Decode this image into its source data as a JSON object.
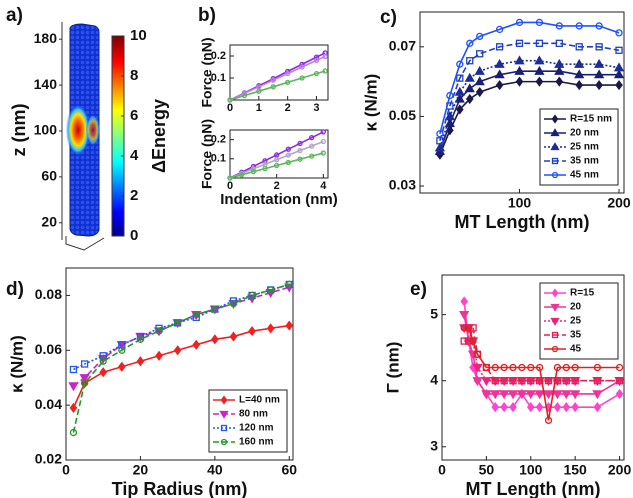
{
  "chart_data": [
    {
      "type": "image",
      "label": "a)",
      "ylabel": "z (nm)",
      "ylim": [
        5,
        195
      ],
      "yticks": [
        20,
        60,
        100,
        140,
        180
      ],
      "colorbar_label": "ΔEnergy",
      "clim": [
        0,
        10
      ],
      "cticks": [
        0,
        2,
        4,
        6,
        8,
        10
      ]
    },
    {
      "type": "line",
      "label": "b)",
      "ylabel": "Force (nN)",
      "xlim": [
        0,
        3.4
      ],
      "ylim": [
        0,
        0.25
      ],
      "xticks": [
        0,
        1,
        2,
        3
      ],
      "yticks": [
        0.1,
        0.2
      ],
      "x": [
        0,
        0.5,
        1,
        1.5,
        2,
        2.5,
        3,
        3.3
      ],
      "series": [
        {
          "color": "#8a2be2",
          "marker": "circle",
          "values": [
            0,
            0.032,
            0.065,
            0.097,
            0.13,
            0.162,
            0.195,
            0.214
          ]
        },
        {
          "color": "#c080e0",
          "marker": "circle",
          "values": [
            0,
            0.03,
            0.06,
            0.09,
            0.12,
            0.15,
            0.18,
            0.198
          ]
        },
        {
          "color": "#5cb85c",
          "marker": "circle",
          "values": [
            0,
            0.02,
            0.04,
            0.06,
            0.08,
            0.1,
            0.12,
            0.132
          ]
        }
      ]
    },
    {
      "type": "line",
      "ylabel": "Force (nN)",
      "xlabel": "Indentation (nm)",
      "xlim": [
        0,
        4.2
      ],
      "ylim": [
        0,
        0.25
      ],
      "xticks": [
        0,
        2,
        4
      ],
      "yticks": [
        0.1,
        0.2
      ],
      "x": [
        0,
        0.5,
        1,
        1.5,
        2,
        2.5,
        3,
        3.5,
        4
      ],
      "series": [
        {
          "color": "#8a2be2",
          "marker": "circle",
          "values": [
            0,
            0.03,
            0.06,
            0.09,
            0.12,
            0.15,
            0.18,
            0.21,
            0.24
          ]
        },
        {
          "color": "#b0a8c0",
          "marker": "circle",
          "values": [
            0,
            0.024,
            0.048,
            0.071,
            0.095,
            0.119,
            0.143,
            0.166,
            0.19
          ]
        },
        {
          "color": "#5cb85c",
          "marker": "circle",
          "values": [
            0,
            0.016,
            0.033,
            0.049,
            0.065,
            0.081,
            0.098,
            0.114,
            0.13
          ]
        }
      ]
    },
    {
      "type": "line",
      "label": "c)",
      "xlabel": "MT Length (nm)",
      "ylabel": "κ (N/m)",
      "xlim": [
        0,
        205
      ],
      "ylim": [
        0.028,
        0.08
      ],
      "xticks": [
        100,
        200
      ],
      "yticks": [
        0.03,
        0.05,
        0.07
      ],
      "legend": "lower right",
      "x": [
        20,
        30,
        40,
        50,
        60,
        80,
        100,
        120,
        140,
        160,
        180,
        200
      ],
      "series": [
        {
          "name": "R=15 nm",
          "color": "#1a1a4a",
          "marker": "diamond",
          "dash": "solid",
          "values": [
            0.039,
            0.046,
            0.052,
            0.055,
            0.057,
            0.059,
            0.06,
            0.06,
            0.06,
            0.059,
            0.059,
            0.059
          ]
        },
        {
          "name": "20 nm",
          "color": "#1a2070",
          "marker": "triangle",
          "dash": "solid",
          "values": [
            0.04,
            0.048,
            0.055,
            0.058,
            0.06,
            0.062,
            0.063,
            0.063,
            0.063,
            0.062,
            0.062,
            0.062
          ]
        },
        {
          "name": "25 nm",
          "color": "#1e2c9a",
          "marker": "triangle",
          "dash": "dotted",
          "values": [
            0.041,
            0.05,
            0.057,
            0.061,
            0.063,
            0.065,
            0.066,
            0.066,
            0.065,
            0.065,
            0.065,
            0.064
          ]
        },
        {
          "name": "35 nm",
          "color": "#2040c0",
          "marker": "square",
          "dash": "dashed",
          "values": [
            0.043,
            0.053,
            0.061,
            0.066,
            0.068,
            0.07,
            0.071,
            0.071,
            0.071,
            0.07,
            0.07,
            0.069
          ]
        },
        {
          "name": "45 nm",
          "color": "#2050ff",
          "marker": "circle",
          "dash": "solid",
          "values": [
            0.045,
            0.056,
            0.065,
            0.071,
            0.073,
            0.075,
            0.077,
            0.077,
            0.076,
            0.076,
            0.076,
            0.074
          ]
        }
      ]
    },
    {
      "type": "line",
      "label": "d)",
      "xlabel": "Tip Radius (nm)",
      "ylabel": "κ (N/m)",
      "xlim": [
        0,
        61
      ],
      "ylim": [
        0.02,
        0.09
      ],
      "xticks": [
        0,
        20,
        40,
        60
      ],
      "yticks": [
        0.02,
        0.04,
        0.06,
        0.08
      ],
      "legend": "lower right",
      "x": [
        2,
        5,
        10,
        15,
        20,
        25,
        30,
        35,
        40,
        45,
        50,
        55,
        60
      ],
      "series": [
        {
          "name": "L=40 nm",
          "color": "#ee2222",
          "marker": "diamond",
          "dash": "solid",
          "values": [
            0.039,
            0.048,
            0.052,
            0.054,
            0.056,
            0.058,
            0.06,
            0.062,
            0.064,
            0.065,
            0.067,
            0.068,
            0.069
          ]
        },
        {
          "name": "80 nm",
          "color": "#cc22cc",
          "marker": "triangle-down",
          "dash": "dashed",
          "values": [
            0.047,
            0.05,
            0.057,
            0.062,
            0.065,
            0.067,
            0.07,
            0.073,
            0.075,
            0.077,
            0.079,
            0.081,
            0.083
          ]
        },
        {
          "name": "120 nm",
          "color": "#2255ee",
          "marker": "square",
          "dash": "dotted",
          "values": [
            0.053,
            0.055,
            0.058,
            0.062,
            0.065,
            0.068,
            0.07,
            0.072,
            0.075,
            0.078,
            0.08,
            0.082,
            0.084
          ]
        },
        {
          "name": "160 nm",
          "color": "#229922",
          "marker": "circle",
          "dash": "dashed",
          "values": [
            0.03,
            0.048,
            0.056,
            0.06,
            0.064,
            0.067,
            0.07,
            0.073,
            0.075,
            0.077,
            0.08,
            0.082,
            0.084
          ]
        }
      ]
    },
    {
      "type": "line",
      "label": "e)",
      "xlabel": "MT Length (nm)",
      "ylabel": "Γ (nm)",
      "xlim": [
        0,
        205
      ],
      "ylim": [
        2.8,
        5.6
      ],
      "xticks": [
        0,
        50,
        100,
        150,
        200
      ],
      "yticks": [
        3,
        4,
        5
      ],
      "legend": "upper right",
      "x": [
        25,
        30,
        35,
        40,
        50,
        60,
        70,
        80,
        90,
        100,
        110,
        120,
        130,
        140,
        150,
        175,
        200
      ],
      "series": [
        {
          "name": "R=15",
          "color": "#ff44cc",
          "marker": "diamond",
          "dash": "solid",
          "values": [
            5.2,
            4.6,
            4.2,
            4.0,
            3.8,
            3.6,
            3.6,
            3.6,
            3.8,
            3.6,
            3.6,
            3.6,
            3.6,
            3.6,
            3.6,
            3.6,
            3.8
          ]
        },
        {
          "name": "20",
          "color": "#ee3399",
          "marker": "triangle-down",
          "dash": "solid",
          "values": [
            5.0,
            4.6,
            4.4,
            4.0,
            3.8,
            3.8,
            3.8,
            3.8,
            3.8,
            3.8,
            3.8,
            3.8,
            3.8,
            3.8,
            3.8,
            3.8,
            4.0
          ]
        },
        {
          "name": "25",
          "color": "#ee2277",
          "marker": "triangle-down",
          "dash": "dotted",
          "values": [
            4.8,
            4.8,
            4.6,
            4.2,
            4.0,
            4.0,
            4.0,
            4.0,
            4.0,
            4.0,
            4.0,
            4.0,
            4.0,
            4.0,
            4.0,
            4.0,
            4.0
          ]
        },
        {
          "name": "35",
          "color": "#dd2255",
          "marker": "square",
          "dash": "dashed",
          "values": [
            4.6,
            4.6,
            4.8,
            4.4,
            4.2,
            4.0,
            4.0,
            4.0,
            4.0,
            4.0,
            4.0,
            4.0,
            4.0,
            4.0,
            4.0,
            4.0,
            4.0
          ]
        },
        {
          "name": "45",
          "color": "#dd2222",
          "marker": "circle",
          "dash": "solid",
          "values": [
            4.8,
            4.8,
            4.6,
            4.4,
            4.2,
            4.2,
            4.2,
            4.2,
            4.2,
            4.2,
            4.2,
            3.4,
            4.2,
            4.2,
            4.2,
            4.2,
            4.2
          ]
        }
      ]
    }
  ]
}
